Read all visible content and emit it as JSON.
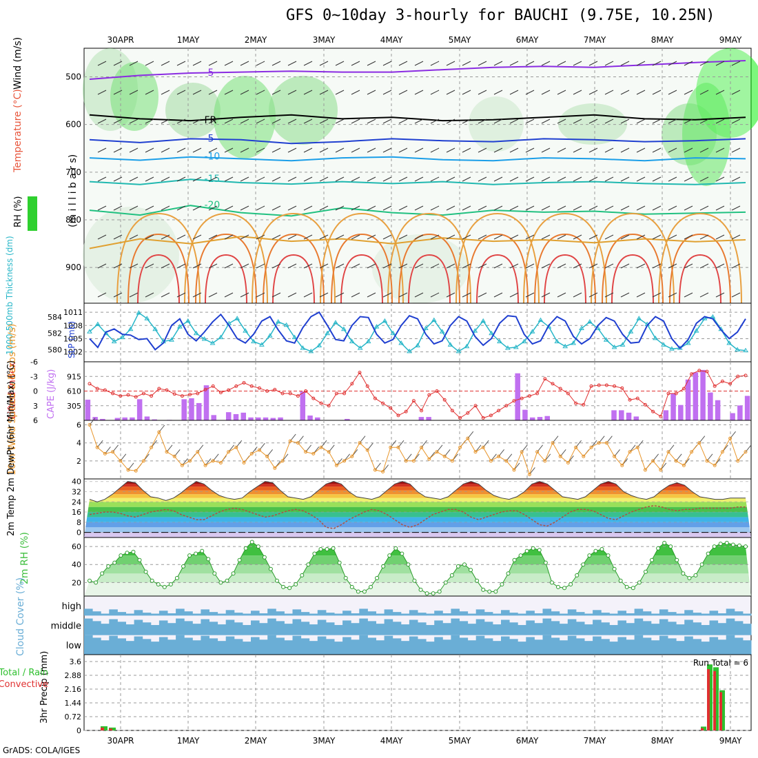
{
  "title": "GFS 0~10day 3-hourly for BAUCHI (9.75E, 10.25N)",
  "credit": "GrADS: COLA/IGES",
  "run_total_label": "Run Total = 6",
  "colors": {
    "rh_green": "#2fd02f",
    "rh_light": "#e6f2e6",
    "temperature_label": "#e8553b",
    "wind_label": "#8a2be2",
    "thickness": "#27b6c8",
    "slp": "#1f3fd0",
    "lifted_index": "#e03030",
    "cape": "#c070f0",
    "wind10m": "#e8952a",
    "temp_fill": "#e8561c",
    "rh2m": "#3fbf3f",
    "cloud": "#6aaed6",
    "precip_total": "#2fc02f",
    "precip_conv": "#e03030"
  },
  "chart_data": [
    {
      "panel": "upper-air",
      "type": "heatmap",
      "x_dates": [
        "30APR",
        "1MAY",
        "2MAY",
        "3MAY",
        "4MAY",
        "5MAY",
        "6MAY",
        "7MAY",
        "8MAY",
        "9MAY"
      ],
      "ylabel_parts": [
        "RH (%)",
        "Temperature (°C)",
        "Wind (m/s)"
      ],
      "yaxis_label": "(m i l l i b a r s)",
      "y_ticks": [
        "500",
        "600",
        "700",
        "800",
        "900"
      ],
      "ylim": [
        440,
        975
      ],
      "isotherm_labels": [
        "-5",
        "-5",
        "FR",
        "FR",
        "FR",
        "-5",
        "-5",
        "-10",
        "-10",
        "-15",
        "-15",
        "-20",
        "-20",
        "25",
        "25",
        "25",
        "25",
        "50",
        "50",
        "30",
        "30",
        "30",
        "30",
        "30"
      ],
      "isotherms": [
        {
          "label": "-5",
          "p": [
            505,
            497,
            492,
            490,
            488,
            490,
            490,
            485,
            480,
            478,
            480,
            475,
            470,
            466
          ]
        },
        {
          "label": "FR",
          "p": [
            580,
            588,
            592,
            585,
            580,
            588,
            585,
            592,
            590,
            585,
            580,
            588,
            590,
            585
          ]
        },
        {
          "label": "-5",
          "p": [
            632,
            638,
            630,
            632,
            640,
            636,
            630,
            634,
            636,
            630,
            632,
            636,
            634,
            630
          ]
        },
        {
          "label": "-10",
          "p": [
            670,
            675,
            668,
            672,
            676,
            670,
            668,
            674,
            676,
            670,
            672,
            676,
            670,
            672
          ]
        },
        {
          "label": "-15",
          "p": [
            720,
            726,
            715,
            722,
            725,
            720,
            724,
            720,
            726,
            722,
            720,
            724,
            726,
            722
          ]
        },
        {
          "label": "-20",
          "p": [
            780,
            790,
            770,
            785,
            792,
            775,
            785,
            790,
            780,
            784,
            782,
            788,
            786,
            784
          ]
        }
      ]
    },
    {
      "panel": "thickness-slp",
      "type": "line",
      "ylabel_left": "1000-500mb Thickness (dm)",
      "ylabel_right": "SLP (mb)",
      "left_ticks": [
        "580",
        "582",
        "584"
      ],
      "right_ticks": [
        "1002",
        "1005",
        "1008",
        "1011"
      ],
      "left_range": [
        579.2,
        585.0
      ],
      "right_range": [
        1001.0,
        1011.8
      ],
      "series": [
        {
          "name": "Thickness",
          "values": [
            582.2,
            583.1,
            582.0,
            581.0,
            581.5,
            582.5,
            584.5,
            583.8,
            582.5,
            581.0,
            581.2,
            582.8,
            583.5,
            582.0,
            581.3,
            580.8,
            581.5,
            583.2,
            583.8,
            582.3,
            581.0,
            580.6,
            581.7,
            583.4,
            583.0,
            581.5,
            580.2,
            579.8,
            580.5,
            582.0,
            583.3,
            582.5,
            581.0,
            580.2,
            581.0,
            582.8,
            583.5,
            582.0,
            580.8,
            579.8,
            580.5,
            582.6,
            583.6,
            582.2,
            580.6,
            579.8,
            580.4,
            582.3,
            583.5,
            582.0,
            581.0,
            580.2,
            580.3,
            581.0,
            582.2,
            583.6,
            582.8,
            581.0,
            580.4,
            580.8,
            582.6,
            583.4,
            582.6,
            581.2,
            580.3,
            580.6,
            582.2,
            583.8,
            583.1,
            581.4,
            580.6,
            580.1,
            580.2,
            580.8,
            582.3,
            583.8,
            584.0,
            582.5,
            580.8,
            580.0,
            579.9
          ]
        },
        {
          "name": "SLP",
          "values": [
            1005.0,
            1003.0,
            1006.5,
            1007.2,
            1006.0,
            1005.8,
            1004.8,
            1005.0,
            1002.5,
            1004.0,
            1008.0,
            1009.5,
            1006.0,
            1004.5,
            1006.5,
            1008.8,
            1010.5,
            1008.0,
            1005.0,
            1004.0,
            1006.0,
            1009.0,
            1010.0,
            1007.0,
            1004.5,
            1004.0,
            1007.5,
            1010.0,
            1011.0,
            1008.0,
            1004.8,
            1004.5,
            1008.0,
            1010.0,
            1009.8,
            1006.0,
            1004.0,
            1004.8,
            1008.0,
            1010.2,
            1009.5,
            1006.0,
            1003.8,
            1004.5,
            1008.0,
            1010.0,
            1009.0,
            1005.5,
            1003.5,
            1005.0,
            1008.5,
            1010.2,
            1010.0,
            1006.0,
            1003.8,
            1004.5,
            1008.0,
            1010.0,
            1009.0,
            1005.5,
            1003.8,
            1005.0,
            1008.0,
            1009.8,
            1009.0,
            1006.0,
            1004.0,
            1004.2,
            1008.0,
            1010.0,
            1009.0,
            1005.0,
            1002.8,
            1004.8,
            1008.5,
            1010.0,
            1009.5,
            1007.0,
            1005.0,
            1006.5,
            1009.5
          ]
        }
      ]
    },
    {
      "panel": "lifted-index-cape",
      "type": "bar",
      "ylabel_left": "Lifted Index",
      "ylabel_right": "CAPE (J/kg)",
      "li_ticks": [
        "-6",
        "-3",
        "0",
        "3",
        "6"
      ],
      "li_range": [
        6,
        -6
      ],
      "cape_ticks": [
        "305",
        "610",
        "915"
      ],
      "cape_range": [
        0,
        1220
      ],
      "lifted_index": [
        -1.5,
        -0.5,
        -0.2,
        0.5,
        1.0,
        0.8,
        1.2,
        0.5,
        1.0,
        -0.5,
        -0.2,
        0.6,
        1.0,
        0.7,
        0.5,
        -0.3,
        -1.0,
        0.3,
        -0.2,
        -1.0,
        -1.7,
        -1.0,
        -0.6,
        0.0,
        -0.3,
        0.5,
        0.5,
        1.0,
        0.0,
        1.5,
        2.5,
        3.0,
        0.5,
        0.5,
        -1.5,
        -3.8,
        -1.0,
        1.5,
        2.5,
        3.5,
        5.0,
        4.2,
        2.0,
        4.0,
        0.8,
        0.0,
        1.8,
        4.0,
        5.5,
        4.5,
        3.0,
        5.5,
        5.0,
        4.0,
        3.0,
        2.0,
        1.5,
        1.0,
        0.5,
        -2.5,
        -1.5,
        -0.5,
        0.5,
        2.5,
        2.8,
        -1.0,
        -1.2,
        -1.2,
        -1.0,
        -0.6,
        1.8,
        1.5,
        2.8,
        4.2,
        5.2,
        0.5,
        0.5,
        -0.5,
        -3.5,
        -4.2,
        -4.0,
        -1.0,
        -2.0,
        -1.5,
        -3.0,
        -3.2
      ],
      "cape": [
        430,
        70,
        30,
        0,
        50,
        60,
        60,
        440,
        80,
        20,
        0,
        10,
        0,
        440,
        460,
        360,
        730,
        110,
        0,
        170,
        130,
        160,
        60,
        60,
        60,
        50,
        60,
        0,
        0,
        600,
        100,
        60,
        0,
        0,
        0,
        30,
        0,
        0,
        0,
        0,
        0,
        0,
        0,
        0,
        0,
        70,
        70,
        0,
        0,
        0,
        0,
        0,
        0,
        0,
        0,
        0,
        0,
        0,
        980,
        220,
        60,
        70,
        90,
        0,
        0,
        0,
        0,
        0,
        0,
        0,
        0,
        210,
        210,
        160,
        80,
        0,
        0,
        0,
        210,
        560,
        320,
        850,
        1000,
        1050,
        580,
        420,
        0,
        150,
        310,
        510
      ]
    },
    {
      "panel": "wind-10m",
      "type": "line",
      "ylabel": "10m Wind Speed & Barbs (m/s)",
      "y_ticks": [
        "2",
        "4",
        "6"
      ],
      "ylim": [
        0,
        6.5
      ],
      "values": [
        6.0,
        3.5,
        2.8,
        3.0,
        2.0,
        1.0,
        0.9,
        2.0,
        3.5,
        5.2,
        3.0,
        2.5,
        1.5,
        2.0,
        3.0,
        1.5,
        2.0,
        1.8,
        3.0,
        3.5,
        1.8,
        2.8,
        3.2,
        2.5,
        1.2,
        2.0,
        4.2,
        4.0,
        3.0,
        2.8,
        3.5,
        3.0,
        1.5,
        2.0,
        2.5,
        4.0,
        3.2,
        1.0,
        0.8,
        3.5,
        3.5,
        2.0,
        2.0,
        3.5,
        2.2,
        3.0,
        2.5,
        2.0,
        3.5,
        4.5,
        3.0,
        3.5,
        2.0,
        2.5,
        2.0,
        1.0,
        3.0,
        0.5,
        3.0,
        2.0,
        4.0,
        2.5,
        1.8,
        3.5,
        2.5,
        3.5,
        4.0,
        4.0,
        2.5,
        1.5,
        3.0,
        3.5,
        1.0,
        2.0,
        1.0,
        3.0,
        2.0,
        1.5,
        3.0,
        4.0,
        2.0,
        1.5,
        3.0,
        4.5,
        2.0,
        3.0
      ]
    },
    {
      "panel": "temp-2m",
      "type": "area",
      "ylabel": "2m Temp 2m DewPt (6hr Min/Max) (°C)",
      "y_ticks": [
        "0",
        "8",
        "16",
        "24",
        "32",
        "40"
      ],
      "ylim": [
        -4,
        42
      ],
      "temperature": [
        26,
        24,
        26,
        30,
        35,
        40,
        39,
        33,
        28,
        27,
        25,
        27,
        31,
        36,
        40,
        38,
        33,
        29,
        27,
        26,
        27,
        32,
        36,
        40,
        39,
        33,
        28,
        27,
        26,
        28,
        33,
        38,
        40,
        38,
        32,
        28,
        27,
        26,
        28,
        33,
        38,
        40,
        38,
        32,
        28,
        27,
        26,
        28,
        33,
        38,
        40,
        38,
        33,
        29,
        27,
        26,
        28,
        32,
        38,
        40,
        38,
        33,
        28,
        27,
        26,
        28,
        33,
        38,
        40,
        38,
        32,
        29,
        27,
        26,
        28,
        33,
        37,
        39,
        37,
        32,
        28,
        27,
        26,
        26,
        27,
        27,
        27
      ],
      "dewpoint": [
        14,
        15,
        16,
        16,
        15,
        13,
        12,
        14,
        16,
        17,
        18,
        17,
        14,
        12,
        10,
        10,
        13,
        16,
        18,
        19,
        18,
        16,
        14,
        12,
        13,
        15,
        17,
        18,
        17,
        14,
        10,
        4,
        3,
        6,
        10,
        13,
        16,
        18,
        17,
        14,
        10,
        6,
        4,
        6,
        10,
        14,
        16,
        18,
        18,
        16,
        12,
        10,
        12,
        14,
        16,
        17,
        17,
        14,
        10,
        6,
        5,
        8,
        12,
        16,
        18,
        18,
        17,
        14,
        11,
        10,
        13,
        16,
        18,
        20,
        21,
        20,
        18,
        17,
        18,
        18,
        19,
        19,
        19,
        19,
        19,
        20,
        20
      ]
    },
    {
      "panel": "rh-2m",
      "type": "area",
      "ylabel": "2m RH (%)",
      "y_ticks": [
        "20",
        "40",
        "60"
      ],
      "ylim": [
        5,
        70
      ],
      "values": [
        22,
        20,
        30,
        38,
        42,
        50,
        53,
        54,
        45,
        32,
        22,
        18,
        15,
        18,
        25,
        38,
        50,
        52,
        55,
        46,
        30,
        20,
        22,
        30,
        45,
        58,
        65,
        60,
        48,
        35,
        22,
        15,
        14,
        18,
        28,
        40,
        52,
        57,
        57,
        58,
        42,
        25,
        15,
        10,
        10,
        15,
        25,
        38,
        50,
        58,
        52,
        40,
        22,
        12,
        8,
        8,
        10,
        20,
        28,
        38,
        40,
        34,
        22,
        12,
        10,
        10,
        18,
        30,
        45,
        50,
        55,
        58,
        56,
        42,
        20,
        15,
        14,
        18,
        28,
        40,
        50,
        55,
        57,
        50,
        35,
        22,
        15,
        14,
        20,
        32,
        45,
        58,
        64,
        60,
        45,
        30,
        25,
        28,
        40,
        52,
        60,
        63,
        64,
        62,
        61,
        60
      ]
    },
    {
      "panel": "cloud-cover",
      "type": "heatmap",
      "ylabel": "Cloud Cover (%)",
      "rows": [
        "high",
        "middle",
        "low"
      ]
    },
    {
      "panel": "precip",
      "type": "bar",
      "ylabel_left": "Total / Rain",
      "ylabel_left2": "Convective",
      "ylabel": "3hr Precip (mm)",
      "y_ticks": [
        "0",
        "0.72",
        "1.44",
        "2.16",
        "2.88",
        "3.6"
      ],
      "ylim": [
        0,
        3.6
      ],
      "x_dates": [
        "30APR",
        "1MAY",
        "2MAY",
        "3MAY",
        "4MAY",
        "5MAY",
        "6MAY",
        "7MAY",
        "8MAY",
        "9MAY"
      ],
      "total": [
        0.22,
        0.15
      ],
      "total_late": [
        0.2,
        3.45,
        3.3,
        2.1
      ],
      "convective": [
        0.15,
        0.1
      ],
      "convective_late": [
        0.12,
        3.2,
        3.1,
        2.0
      ]
    }
  ]
}
